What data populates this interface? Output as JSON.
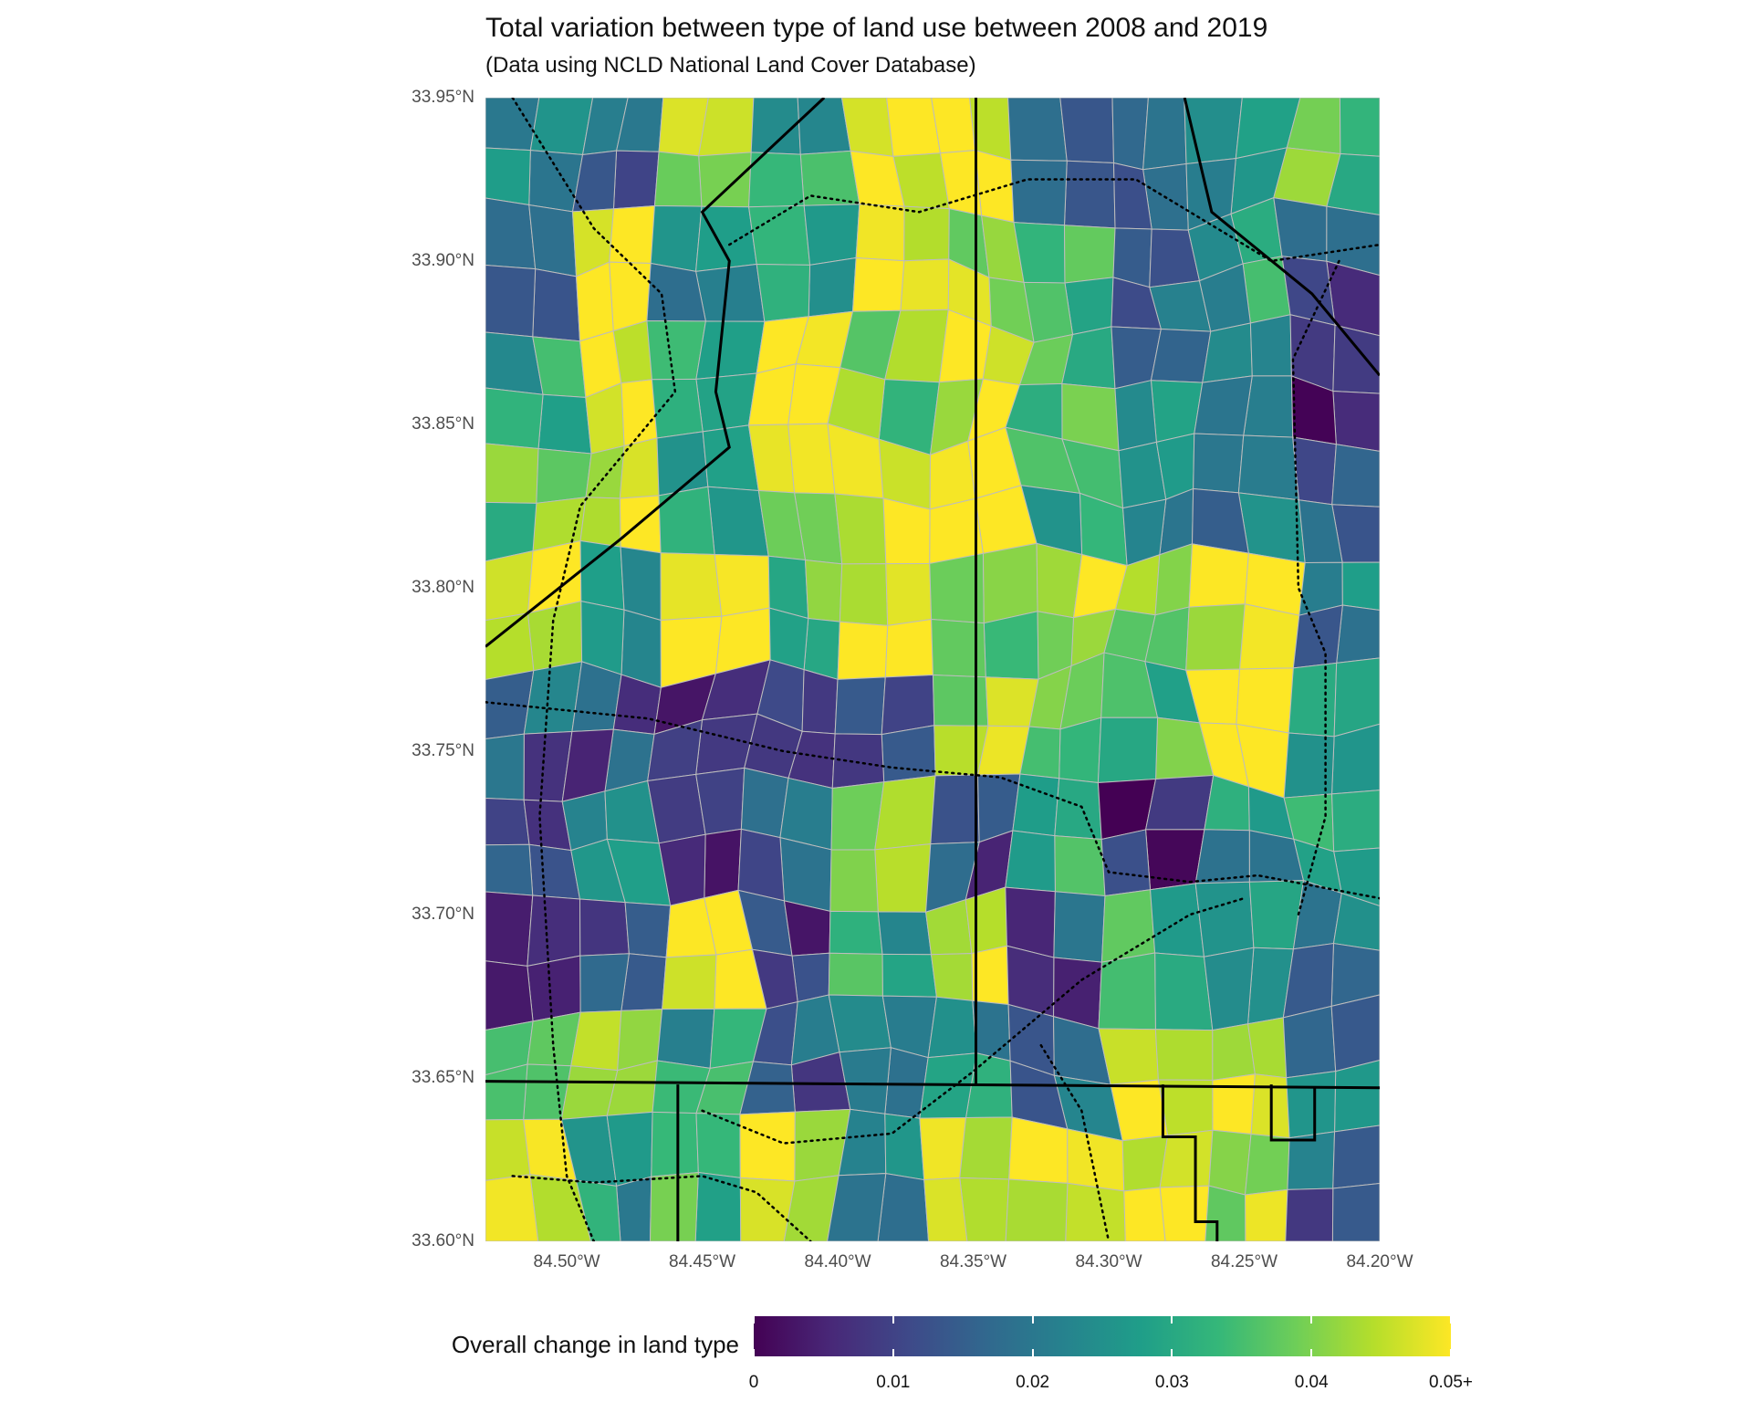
{
  "title": "Total variation between type of land use between 2008 and 2019",
  "subtitle": "(Data using NCLD National Land Cover Database)",
  "axes": {
    "y_labels": [
      "33.95°N",
      "33.90°N",
      "33.85°N",
      "33.80°N",
      "33.75°N",
      "33.70°N",
      "33.65°N",
      "33.60°N"
    ],
    "x_labels": [
      "84.50°W",
      "84.45°W",
      "84.40°W",
      "84.35°W",
      "84.30°W",
      "84.25°W",
      "84.20°W"
    ],
    "lat_range": [
      33.6,
      33.95
    ],
    "lon_range": [
      -84.53,
      -84.2
    ]
  },
  "legend": {
    "title": "Overall change in land type",
    "labels": [
      "0",
      "0.01",
      "0.02",
      "0.03",
      "0.04",
      "0.05+"
    ],
    "range": [
      0,
      0.05
    ],
    "palette": [
      "#440154",
      "#482878",
      "#3e4989",
      "#31688e",
      "#26828e",
      "#1f9e89",
      "#35b779",
      "#6ece58",
      "#b5de2b",
      "#fde725"
    ]
  },
  "chart_data": {
    "type": "heatmap",
    "description_of_fill": "choropleth of census tracts colored by overall change in land type",
    "grid_lon": [
      -84.53,
      -84.497,
      -84.464,
      -84.431,
      -84.398,
      -84.365,
      -84.332,
      -84.299,
      -84.266,
      -84.233,
      -84.2
    ],
    "grid_lat": [
      33.95,
      33.915,
      33.88,
      33.845,
      33.81,
      33.775,
      33.74,
      33.705,
      33.67,
      33.635,
      33.6
    ],
    "values": [
      [
        0.02,
        0.015,
        0.04,
        0.028,
        0.05,
        0.05,
        0.02,
        0.012,
        0.025,
        0.035
      ],
      [
        0.018,
        0.05,
        0.022,
        0.03,
        0.05,
        0.045,
        0.03,
        0.015,
        0.028,
        0.012
      ],
      [
        0.03,
        0.045,
        0.035,
        0.05,
        0.04,
        0.05,
        0.038,
        0.022,
        0.025,
        0.008
      ],
      [
        0.038,
        0.05,
        0.028,
        0.045,
        0.05,
        0.05,
        0.032,
        0.025,
        0.02,
        0.018
      ],
      [
        0.05,
        0.03,
        0.05,
        0.036,
        0.05,
        0.035,
        0.045,
        0.04,
        0.05,
        0.02
      ],
      [
        0.015,
        0.012,
        0.008,
        0.012,
        0.015,
        0.045,
        0.04,
        0.035,
        0.05,
        0.026
      ],
      [
        0.012,
        0.022,
        0.005,
        0.018,
        0.04,
        0.01,
        0.035,
        0.006,
        0.024,
        0.03
      ],
      [
        0.008,
        0.015,
        0.05,
        0.01,
        0.03,
        0.05,
        0.012,
        0.03,
        0.022,
        0.018
      ],
      [
        0.032,
        0.045,
        0.028,
        0.015,
        0.025,
        0.025,
        0.02,
        0.05,
        0.05,
        0.022
      ],
      [
        0.05,
        0.026,
        0.035,
        0.048,
        0.02,
        0.05,
        0.05,
        0.05,
        0.045,
        0.015
      ]
    ]
  }
}
